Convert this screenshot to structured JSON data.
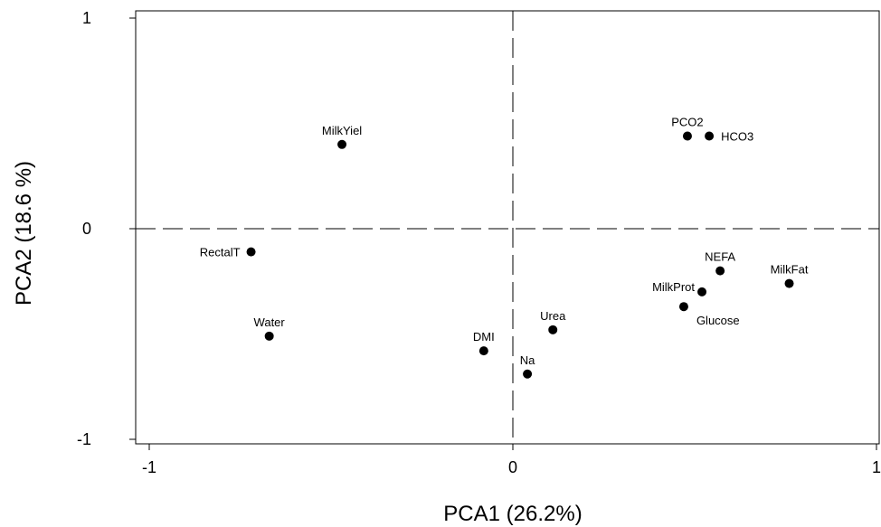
{
  "chart_data": {
    "type": "scatter",
    "title": "",
    "xlabel": "PCA1 (26.2%)",
    "ylabel": "PCA2 (18.6 %)",
    "xlim": [
      -1,
      1
    ],
    "ylim": [
      -1,
      1
    ],
    "xticks": [
      {
        "value": -1,
        "label": "-1"
      },
      {
        "value": 0,
        "label": "0"
      },
      {
        "value": 1,
        "label": "1"
      }
    ],
    "yticks": [
      {
        "value": -1,
        "label": "-1"
      },
      {
        "value": 0,
        "label": "0"
      },
      {
        "value": 1,
        "label": "1"
      }
    ],
    "reference_lines": {
      "x": 0,
      "y": 0,
      "style": "dashed"
    },
    "grid": false,
    "points": [
      {
        "label": "MilkYiel",
        "x": -0.47,
        "y": 0.4,
        "label_pos": "above"
      },
      {
        "label": "PCO2",
        "x": 0.48,
        "y": 0.44,
        "label_pos": "above"
      },
      {
        "label": "HCO3",
        "x": 0.54,
        "y": 0.44,
        "label_pos": "right"
      },
      {
        "label": "RectalT",
        "x": -0.72,
        "y": -0.11,
        "label_pos": "left"
      },
      {
        "label": "Water",
        "x": -0.67,
        "y": -0.51,
        "label_pos": "above"
      },
      {
        "label": "NEFA",
        "x": 0.57,
        "y": -0.2,
        "label_pos": "above"
      },
      {
        "label": "MilkFat",
        "x": 0.76,
        "y": -0.26,
        "label_pos": "above"
      },
      {
        "label": "MilkProt",
        "x": 0.52,
        "y": -0.3,
        "label_pos": "upper-left"
      },
      {
        "label": "Glucose",
        "x": 0.47,
        "y": -0.37,
        "label_pos": "lower-right"
      },
      {
        "label": "Urea",
        "x": 0.11,
        "y": -0.48,
        "label_pos": "above"
      },
      {
        "label": "DMI",
        "x": -0.08,
        "y": -0.58,
        "label_pos": "above"
      },
      {
        "label": "Na",
        "x": 0.04,
        "y": -0.69,
        "label_pos": "above"
      }
    ]
  }
}
